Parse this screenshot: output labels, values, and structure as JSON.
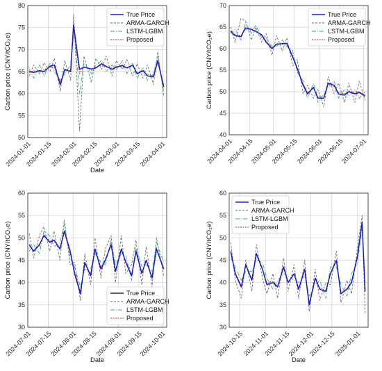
{
  "figure": {
    "colors": {
      "true": "#1a1acc",
      "arma": "#6b6b6b",
      "lstm": "#2bb87a",
      "proposed": "#d62728",
      "grid": "#cccccc",
      "background": "#ffffff"
    }
  },
  "chart_data": [
    {
      "type": "line",
      "xlabel": "Date",
      "ylabel": "Carbon price (CNY/tCO₂e)",
      "ylim": [
        50,
        80
      ],
      "yticks": [
        50,
        55,
        60,
        65,
        70,
        75,
        80
      ],
      "xlim": [
        "2024-01-01",
        "2024-04-04"
      ],
      "xticks": [
        "2024-01-01",
        "2024-01-15",
        "2024-02-01",
        "2024-02-15",
        "2024-03-01",
        "2024-03-15",
        "2024-04-01"
      ],
      "grid": true,
      "legend_position": "top-right",
      "legend": [
        "True Price",
        "ARMA-GARCH",
        "LSTM-LGBM",
        "Proposed"
      ],
      "x": [
        "2024-01-02",
        "2024-01-05",
        "2024-01-09",
        "2024-01-12",
        "2024-01-16",
        "2024-01-19",
        "2024-01-23",
        "2024-01-26",
        "2024-01-30",
        "2024-02-01",
        "2024-02-05",
        "2024-02-08",
        "2024-02-13",
        "2024-02-16",
        "2024-02-20",
        "2024-02-23",
        "2024-02-27",
        "2024-03-01",
        "2024-03-05",
        "2024-03-08",
        "2024-03-12",
        "2024-03-15",
        "2024-03-19",
        "2024-03-22",
        "2024-03-26",
        "2024-03-29",
        "2024-04-02"
      ],
      "series": [
        {
          "name": "True Price",
          "values": [
            65.0,
            64.8,
            65.2,
            65.0,
            66.2,
            66.5,
            62.0,
            65.5,
            65.0,
            75.5,
            65.5,
            66.0,
            65.6,
            65.8,
            66.8,
            66.2,
            65.5,
            66.0,
            66.4,
            65.8,
            66.5,
            64.5,
            65.2,
            64.0,
            63.8,
            67.5,
            61.5
          ]
        },
        {
          "name": "ARMA-GARCH",
          "values": [
            64.0,
            66.5,
            64.5,
            67.0,
            65.0,
            68.0,
            60.5,
            67.5,
            63.0,
            78.0,
            51.5,
            68.5,
            62.5,
            68.0,
            65.5,
            68.5,
            64.0,
            67.5,
            65.5,
            67.8,
            64.0,
            66.8,
            63.5,
            66.5,
            62.0,
            69.5,
            59.5
          ]
        },
        {
          "name": "LSTM-LGBM",
          "values": [
            65.5,
            63.5,
            66.5,
            64.0,
            67.0,
            65.0,
            63.0,
            64.5,
            66.5,
            76.0,
            60.0,
            67.0,
            64.5,
            66.5,
            67.5,
            65.0,
            66.5,
            65.5,
            67.5,
            64.5,
            67.0,
            63.5,
            66.0,
            63.0,
            64.5,
            68.5,
            60.5
          ]
        },
        {
          "name": "Proposed",
          "values": [
            64.8,
            65.2,
            64.9,
            65.4,
            66.0,
            66.0,
            62.8,
            65.2,
            65.3,
            75.0,
            64.5,
            66.2,
            65.3,
            66.0,
            66.5,
            66.0,
            65.8,
            66.2,
            66.1,
            66.0,
            66.2,
            64.8,
            65.0,
            64.3,
            64.0,
            67.0,
            62.0
          ]
        }
      ]
    },
    {
      "type": "line",
      "xlabel": "",
      "ylabel": "Carbon price (CNY/tCO₂e)",
      "ylim": [
        40,
        70
      ],
      "yticks": [
        40,
        45,
        50,
        55,
        60,
        65,
        70
      ],
      "xlim": [
        "2024-04-01",
        "2024-07-04"
      ],
      "xticks": [
        "2024-04-01",
        "2024-04-15",
        "2024-05-01",
        "2024-05-15",
        "2024-06-01",
        "2024-06-15",
        "2024-07-01"
      ],
      "grid": true,
      "legend_position": "top-right",
      "legend": [
        "True Price",
        "ARMA-GARCH",
        "LSTM-LGBM",
        "Proposed"
      ],
      "x": [
        "2024-04-02",
        "2024-04-05",
        "2024-04-09",
        "2024-04-12",
        "2024-04-16",
        "2024-04-19",
        "2024-04-23",
        "2024-04-26",
        "2024-04-30",
        "2024-05-03",
        "2024-05-07",
        "2024-05-10",
        "2024-05-14",
        "2024-05-17",
        "2024-05-21",
        "2024-05-24",
        "2024-05-28",
        "2024-05-31",
        "2024-06-04",
        "2024-06-07",
        "2024-06-11",
        "2024-06-14",
        "2024-06-18",
        "2024-06-21",
        "2024-06-25",
        "2024-06-28",
        "2024-07-02"
      ],
      "series": [
        {
          "name": "True Price",
          "values": [
            64.0,
            63.0,
            62.8,
            64.8,
            64.5,
            64.0,
            63.2,
            61.5,
            60.0,
            61.0,
            61.2,
            61.2,
            58.0,
            55.5,
            51.5,
            49.5,
            51.0,
            48.5,
            48.5,
            52.0,
            51.5,
            49.5,
            49.2,
            50.0,
            49.5,
            49.8,
            49.0
          ]
        },
        {
          "name": "ARMA-GARCH",
          "values": [
            65.0,
            61.5,
            67.0,
            66.5,
            62.0,
            65.0,
            61.5,
            63.5,
            58.5,
            63.0,
            59.5,
            62.5,
            56.0,
            57.5,
            49.5,
            51.5,
            48.5,
            50.5,
            46.5,
            53.5,
            49.5,
            52.0,
            47.5,
            52.0,
            47.5,
            52.5,
            48.0
          ]
        },
        {
          "name": "LSTM-LGBM",
          "values": [
            63.5,
            64.5,
            62.0,
            66.0,
            63.5,
            65.5,
            62.5,
            62.5,
            60.5,
            60.5,
            62.0,
            60.5,
            59.5,
            54.5,
            52.5,
            48.5,
            52.0,
            47.5,
            49.5,
            51.0,
            52.5,
            48.5,
            50.5,
            49.0,
            50.5,
            48.5,
            50.0
          ]
        },
        {
          "name": "Proposed",
          "values": [
            64.2,
            63.3,
            63.0,
            64.5,
            64.2,
            64.2,
            63.0,
            61.8,
            60.2,
            61.2,
            61.0,
            61.0,
            58.5,
            55.0,
            51.8,
            49.8,
            50.8,
            48.8,
            48.8,
            51.8,
            51.2,
            49.8,
            49.5,
            50.2,
            49.8,
            50.0,
            49.2
          ]
        }
      ]
    },
    {
      "type": "line",
      "xlabel": "Date",
      "ylabel": "Carbon price (CNY/tCO₂e)",
      "ylim": [
        30,
        60
      ],
      "yticks": [
        30,
        35,
        40,
        45,
        50,
        55,
        60
      ],
      "xlim": [
        "2024-07-01",
        "2024-10-04"
      ],
      "xticks": [
        "2024-07-01",
        "2024-07-15",
        "2024-08-01",
        "2024-08-15",
        "2024-09-01",
        "2024-09-15",
        "2024-10-01"
      ],
      "grid": true,
      "legend_position": "lower-right",
      "legend": [
        "True Price",
        "ARMA-GARCH",
        "LSTM-LGBM",
        "Proposed"
      ],
      "x": [
        "2024-07-02",
        "2024-07-05",
        "2024-07-09",
        "2024-07-12",
        "2024-07-16",
        "2024-07-19",
        "2024-07-23",
        "2024-07-26",
        "2024-07-30",
        "2024-08-02",
        "2024-08-06",
        "2024-08-09",
        "2024-08-13",
        "2024-08-16",
        "2024-08-20",
        "2024-08-23",
        "2024-08-27",
        "2024-08-30",
        "2024-09-03",
        "2024-09-06",
        "2024-09-10",
        "2024-09-13",
        "2024-09-17",
        "2024-09-20",
        "2024-09-24",
        "2024-09-27",
        "2024-10-02"
      ],
      "series": [
        {
          "name": "True Price",
          "values": [
            48.5,
            47.0,
            48.5,
            50.5,
            49.0,
            49.5,
            47.5,
            51.5,
            47.0,
            42.0,
            37.5,
            44.5,
            41.5,
            47.5,
            43.0,
            45.0,
            48.5,
            42.5,
            47.5,
            44.5,
            41.5,
            47.0,
            42.0,
            45.0,
            41.0,
            47.5,
            43.0
          ]
        },
        {
          "name": "ARMA-GARCH",
          "values": [
            51.0,
            45.5,
            50.5,
            52.5,
            47.0,
            51.5,
            45.0,
            54.0,
            44.0,
            44.5,
            36.0,
            46.5,
            39.5,
            50.0,
            41.0,
            47.5,
            50.5,
            40.0,
            50.5,
            42.0,
            44.0,
            49.5,
            39.5,
            48.0,
            39.0,
            50.0,
            41.5
          ]
        },
        {
          "name": "LSTM-LGBM",
          "values": [
            47.0,
            48.5,
            46.5,
            51.5,
            50.5,
            48.0,
            49.0,
            53.0,
            45.5,
            43.5,
            39.0,
            43.0,
            43.0,
            46.5,
            44.5,
            44.0,
            49.5,
            44.0,
            46.5,
            46.0,
            40.5,
            48.0,
            43.5,
            44.0,
            42.5,
            49.0,
            44.5
          ]
        },
        {
          "name": "Proposed",
          "values": [
            48.0,
            47.2,
            48.2,
            50.8,
            49.3,
            49.2,
            47.8,
            51.2,
            46.5,
            42.5,
            38.0,
            44.0,
            42.0,
            47.2,
            43.5,
            44.8,
            48.8,
            42.8,
            47.2,
            44.8,
            41.8,
            47.3,
            42.3,
            45.0,
            41.3,
            47.8,
            43.2
          ]
        }
      ]
    },
    {
      "type": "line",
      "xlabel": "Date",
      "ylabel": "Carbon price (CNY/tCO₂e)",
      "ylim": [
        30,
        60
      ],
      "yticks": [
        30,
        35,
        40,
        45,
        50,
        55,
        60
      ],
      "xlim": [
        "2024-10-08",
        "2025-01-08"
      ],
      "xticks": [
        "2024-10-15",
        "2024-11-01",
        "2024-11-15",
        "2024-12-01",
        "2024-12-15",
        "2025-01-01"
      ],
      "grid": true,
      "legend_position": "top-left",
      "legend": [
        "True Price",
        "ARMA-GARCH",
        "LSTM-LGBM",
        "Proposed"
      ],
      "x": [
        "2024-10-09",
        "2024-10-12",
        "2024-10-16",
        "2024-10-19",
        "2024-10-23",
        "2024-10-26",
        "2024-10-30",
        "2024-11-02",
        "2024-11-06",
        "2024-11-09",
        "2024-11-13",
        "2024-11-16",
        "2024-11-20",
        "2024-11-23",
        "2024-11-27",
        "2024-11-30",
        "2024-12-04",
        "2024-12-07",
        "2024-12-11",
        "2024-12-14",
        "2024-12-18",
        "2024-12-21",
        "2024-12-25",
        "2024-12-28",
        "2025-01-01",
        "2025-01-04",
        "2025-01-06"
      ],
      "series": [
        {
          "name": "True Price",
          "values": [
            47.0,
            42.0,
            39.0,
            44.0,
            40.5,
            46.5,
            43.0,
            39.5,
            40.0,
            39.0,
            43.5,
            40.0,
            42.0,
            38.5,
            43.0,
            35.0,
            41.0,
            38.5,
            38.0,
            42.0,
            45.0,
            37.5,
            38.5,
            40.0,
            46.0,
            53.5,
            38.0
          ]
        },
        {
          "name": "ARMA-GARCH",
          "values": [
            49.0,
            40.5,
            36.5,
            45.0,
            38.0,
            48.5,
            41.0,
            37.5,
            42.0,
            36.5,
            45.5,
            38.0,
            44.0,
            36.5,
            45.0,
            33.5,
            43.0,
            36.0,
            40.0,
            39.5,
            47.0,
            35.5,
            40.5,
            37.5,
            48.0,
            55.0,
            33.0
          ]
        },
        {
          "name": "LSTM-LGBM",
          "values": [
            45.5,
            43.5,
            40.5,
            42.5,
            42.5,
            45.0,
            44.5,
            41.0,
            38.5,
            40.5,
            42.0,
            41.5,
            40.5,
            40.0,
            41.5,
            37.0,
            39.5,
            40.5,
            36.5,
            43.5,
            43.5,
            39.5,
            37.0,
            42.0,
            44.5,
            52.0,
            40.0
          ]
        },
        {
          "name": "Proposed",
          "values": [
            46.5,
            42.3,
            39.3,
            43.7,
            40.8,
            46.2,
            43.2,
            39.8,
            40.2,
            39.2,
            43.2,
            40.2,
            41.8,
            38.8,
            42.8,
            35.5,
            40.8,
            38.8,
            38.2,
            41.8,
            44.8,
            37.8,
            38.7,
            40.2,
            45.7,
            53.0,
            38.5
          ]
        }
      ]
    }
  ]
}
